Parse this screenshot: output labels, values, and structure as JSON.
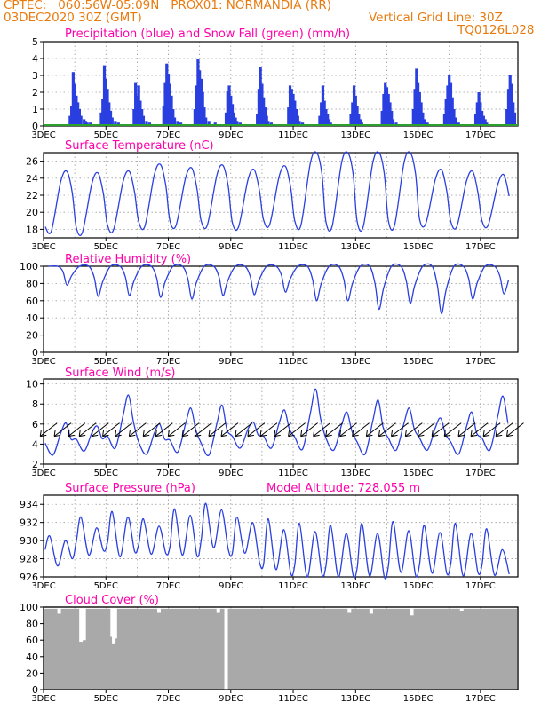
{
  "header": {
    "line1_left": "CPTEC:   060:56W-05:09N   PROX01: NORMANDIA (RR)",
    "line2_left": "03DEC2020 30Z (GMT)",
    "line2_right": "Vertical Grid Line: 30Z",
    "code": "TQ0126L028",
    "altitude_label": "Model Altitude: 728.055 m"
  },
  "colors": {
    "header": "#e87b10",
    "panel_title": "#ff00aa",
    "line": "#2a3fe0",
    "precip_bar": "#2a3fe0",
    "snow_line": "#2ca02c",
    "cloud": "#a9a9a9",
    "wind_arrow": "#000000",
    "grid": "#9a9a9a"
  },
  "x_axis": {
    "tick_labels": [
      "3DEC",
      "5DEC",
      "7DEC",
      "9DEC",
      "11DEC",
      "13DEC",
      "15DEC",
      "17DEC"
    ],
    "tick_days": [
      0,
      2,
      4,
      6,
      8,
      10,
      12,
      14
    ],
    "grid_days": [
      0,
      1,
      2,
      3,
      4,
      5,
      6,
      7,
      8,
      9,
      10,
      11,
      12,
      13,
      14
    ],
    "extent_days": 15.2
  },
  "chart_data": [
    {
      "id": "precip",
      "type": "bar",
      "title": "Precipitation (blue) and Snow Fall (green) (mm/h)",
      "ylim": [
        0,
        5
      ],
      "yticks": [
        0,
        1,
        2,
        3,
        4,
        5
      ],
      "grid": true,
      "series": [
        {
          "name": "Precipitation",
          "x": [
            0.85,
            0.9,
            0.95,
            1.0,
            1.05,
            1.1,
            1.15,
            1.2,
            1.3,
            1.35,
            1.4,
            1.5,
            1.85,
            1.9,
            1.95,
            2.0,
            2.05,
            2.1,
            2.15,
            2.2,
            2.3,
            2.4,
            2.9,
            2.95,
            3.0,
            3.05,
            3.1,
            3.15,
            3.2,
            3.3,
            3.4,
            3.85,
            3.9,
            3.95,
            4.0,
            4.05,
            4.1,
            4.15,
            4.2,
            4.3,
            4.4,
            4.85,
            4.9,
            4.95,
            5.0,
            5.05,
            5.1,
            5.15,
            5.2,
            5.3,
            5.5,
            5.85,
            5.9,
            5.95,
            6.0,
            6.05,
            6.1,
            6.15,
            6.2,
            6.3,
            6.4,
            6.85,
            6.9,
            6.95,
            7.0,
            7.05,
            7.1,
            7.15,
            7.2,
            7.3,
            7.85,
            7.9,
            7.95,
            8.0,
            8.05,
            8.1,
            8.15,
            8.2,
            8.3,
            8.85,
            8.9,
            8.95,
            9.0,
            9.05,
            9.1,
            9.15,
            9.2,
            9.3,
            9.85,
            9.9,
            9.95,
            10.0,
            10.05,
            10.1,
            10.15,
            10.2,
            10.3,
            10.85,
            10.9,
            10.95,
            11.0,
            11.05,
            11.1,
            11.15,
            11.2,
            11.3,
            11.4,
            11.85,
            11.9,
            11.95,
            12.0,
            12.05,
            12.1,
            12.15,
            12.2,
            12.3,
            12.85,
            12.9,
            12.95,
            13.0,
            13.05,
            13.1,
            13.15,
            13.2,
            13.3,
            13.85,
            13.9,
            13.95,
            14.0,
            14.05,
            14.1,
            14.15,
            14.2,
            14.3,
            14.85,
            14.9,
            14.95,
            15.0,
            15.05,
            15.1
          ],
          "values": [
            0.6,
            1.2,
            3.2,
            2.5,
            1.8,
            1.4,
            1.0,
            0.6,
            0.4,
            0.3,
            0.2,
            0.2,
            0.8,
            1.6,
            3.6,
            2.8,
            2.2,
            1.4,
            0.9,
            0.5,
            0.3,
            0.2,
            1.0,
            2.6,
            1.8,
            2.4,
            1.5,
            1.0,
            0.6,
            0.3,
            0.2,
            1.2,
            2.6,
            3.7,
            3.1,
            2.5,
            1.8,
            1.0,
            0.5,
            0.3,
            0.2,
            1.0,
            2.4,
            4.0,
            3.3,
            2.8,
            2.0,
            1.1,
            0.5,
            0.3,
            0.2,
            0.8,
            2.1,
            2.4,
            1.8,
            1.3,
            0.8,
            0.5,
            0.3,
            0.2,
            0.1,
            0.7,
            2.2,
            3.5,
            2.5,
            1.7,
            1.1,
            0.6,
            0.3,
            0.2,
            1.1,
            2.4,
            2.2,
            1.9,
            1.5,
            1.0,
            0.6,
            0.3,
            0.2,
            0.6,
            1.4,
            2.4,
            1.5,
            1.0,
            0.7,
            0.4,
            0.2,
            0.1,
            0.7,
            1.4,
            2.4,
            1.8,
            1.2,
            0.7,
            0.4,
            0.2,
            0.1,
            0.9,
            1.9,
            2.6,
            2.3,
            1.9,
            1.4,
            0.9,
            0.4,
            0.2,
            0.1,
            1.0,
            2.2,
            3.4,
            2.6,
            2.0,
            1.4,
            0.8,
            0.4,
            0.2,
            0.7,
            1.6,
            2.4,
            3.0,
            2.6,
            1.7,
            1.0,
            0.5,
            0.2,
            0.7,
            1.4,
            2.0,
            1.4,
            0.9,
            0.6,
            0.4,
            0.2,
            0.1,
            1.0,
            2.2,
            3.0,
            2.5,
            1.4,
            0.8
          ]
        },
        {
          "name": "Snow Fall",
          "x": [
            0,
            15.2
          ],
          "values": [
            0,
            0
          ]
        }
      ]
    },
    {
      "id": "temp",
      "type": "line",
      "title": "Surface Temperature (nC)",
      "ylim": [
        17,
        27
      ],
      "yticks": [
        18,
        20,
        22,
        24,
        26
      ],
      "grid": true,
      "series": [
        {
          "name": "Temperature",
          "daily": [
            {
              "min": 17.8,
              "max": 24.8
            },
            {
              "min": 17.7,
              "max": 24.6
            },
            {
              "min": 18.0,
              "max": 24.8
            },
            {
              "min": 18.4,
              "max": 25.6
            },
            {
              "min": 18.5,
              "max": 25.2
            },
            {
              "min": 18.5,
              "max": 25.5
            },
            {
              "min": 18.3,
              "max": 25.0
            },
            {
              "min": 18.6,
              "max": 25.4
            },
            {
              "min": 18.5,
              "max": 27.0
            },
            {
              "min": 18.4,
              "max": 27.0
            },
            {
              "min": 18.4,
              "max": 27.0
            },
            {
              "min": 18.5,
              "max": 27.0
            },
            {
              "min": 18.7,
              "max": 25.0
            },
            {
              "min": 18.4,
              "max": 24.8
            },
            {
              "min": 18.5,
              "max": 24.4
            }
          ]
        }
      ]
    },
    {
      "id": "rh",
      "type": "line",
      "title": "Relative Humidity (%)",
      "ylim": [
        0,
        100
      ],
      "yticks": [
        0,
        20,
        40,
        60,
        80,
        100
      ],
      "grid": true,
      "series": [
        {
          "name": "Relative Humidity",
          "daily_min": [
            78,
            65,
            66,
            64,
            62,
            66,
            67,
            70,
            60,
            60,
            50,
            57,
            45,
            62,
            68
          ]
        }
      ]
    },
    {
      "id": "wind",
      "type": "line",
      "title": "Surface Wind (m/s)",
      "ylim": [
        2,
        10.5
      ],
      "yticks": [
        2,
        4,
        6,
        8,
        10
      ],
      "grid": true,
      "series": [
        {
          "name": "Wind Speed",
          "daily_max": [
            6.1,
            5.8,
            8.9,
            6.0,
            7.6,
            7.9,
            6.2,
            7.4,
            9.5,
            7.2,
            8.4,
            7.6,
            6.6,
            7.2,
            8.8
          ],
          "daily_min": [
            2.9,
            3.3,
            3.6,
            3.0,
            3.2,
            2.9,
            3.6,
            3.6,
            3.5,
            3.4,
            3.0,
            3.4,
            3.4,
            3.0,
            3.4
          ]
        }
      ],
      "arrows": {
        "x_days": [
          0.15,
          0.6,
          1.05,
          1.4,
          1.8,
          2.15,
          2.55,
          3.0,
          3.45,
          3.85,
          4.25,
          4.7,
          5.1,
          5.55,
          5.95,
          6.4,
          6.8,
          7.2,
          7.65,
          8.1,
          8.5,
          8.9,
          9.3,
          9.75,
          10.15,
          10.6,
          11.0,
          11.4,
          11.85,
          12.25,
          12.7,
          13.1,
          13.55,
          13.95,
          14.35,
          14.75,
          15.1
        ],
        "direction": "from the northeast"
      }
    },
    {
      "id": "pressure",
      "type": "line",
      "title": "Surface Pressure (hPa)",
      "ylim": [
        926,
        935
      ],
      "yticks": [
        926,
        928,
        930,
        932,
        934
      ],
      "grid": true,
      "series": [
        {
          "name": "Surface Pressure",
          "semidiurnal": [
            {
              "max": 930.5,
              "min": 927.2,
              "max2": 930.0,
              "min2": 928.0
            },
            {
              "max": 932.6,
              "min": 928.4,
              "max2": 931.4,
              "min2": 928.9
            },
            {
              "max": 933.2,
              "min": 928.2,
              "max2": 932.6,
              "min2": 928.8
            },
            {
              "max": 932.4,
              "min": 928.5,
              "max2": 931.6,
              "min2": 928.6
            },
            {
              "max": 933.5,
              "min": 928.4,
              "max2": 932.8,
              "min2": 928.3
            },
            {
              "max": 934.1,
              "min": 929.2,
              "max2": 933.4,
              "min2": 929.0
            },
            {
              "max": 932.6,
              "min": 928.6,
              "max2": 932.0,
              "min2": 927.6
            },
            {
              "max": 932.4,
              "min": 926.8,
              "max2": 931.2,
              "min2": 926.4
            },
            {
              "max": 931.9,
              "min": 926.0,
              "max2": 931.0,
              "min2": 926.3
            },
            {
              "max": 931.7,
              "min": 926.0,
              "max2": 930.8,
              "min2": 926.2
            },
            {
              "max": 931.9,
              "min": 926.1,
              "max2": 930.8,
              "min2": 926.0
            },
            {
              "max": 932.1,
              "min": 926.5,
              "max2": 931.1,
              "min2": 926.2
            },
            {
              "max": 931.7,
              "min": 926.4,
              "max2": 930.9,
              "min2": 926.4
            },
            {
              "max": 931.9,
              "min": 926.1,
              "max2": 930.8,
              "min2": 926.5
            },
            {
              "max": 931.3,
              "min": 926.2,
              "max2": 929.0,
              "min2": 926.3
            }
          ]
        }
      ]
    },
    {
      "id": "cloud",
      "type": "area",
      "title": "Cloud Cover (%)",
      "ylim": [
        0,
        100
      ],
      "yticks": [
        0,
        20,
        40,
        60,
        80,
        100
      ],
      "grid": true,
      "series": [
        {
          "name": "Cloud Cover",
          "baseline": 98,
          "dips": [
            {
              "day": 0.5,
              "value": 92
            },
            {
              "day": 1.2,
              "value": 58
            },
            {
              "day": 1.3,
              "value": 60
            },
            {
              "day": 2.2,
              "value": 64
            },
            {
              "day": 2.25,
              "value": 55
            },
            {
              "day": 2.3,
              "value": 62
            },
            {
              "day": 3.7,
              "value": 93
            },
            {
              "day": 5.6,
              "value": 93
            },
            {
              "day": 5.85,
              "value": 0
            },
            {
              "day": 9.8,
              "value": 93
            },
            {
              "day": 10.5,
              "value": 92
            },
            {
              "day": 11.8,
              "value": 90
            },
            {
              "day": 13.4,
              "value": 95
            }
          ]
        }
      ]
    }
  ]
}
